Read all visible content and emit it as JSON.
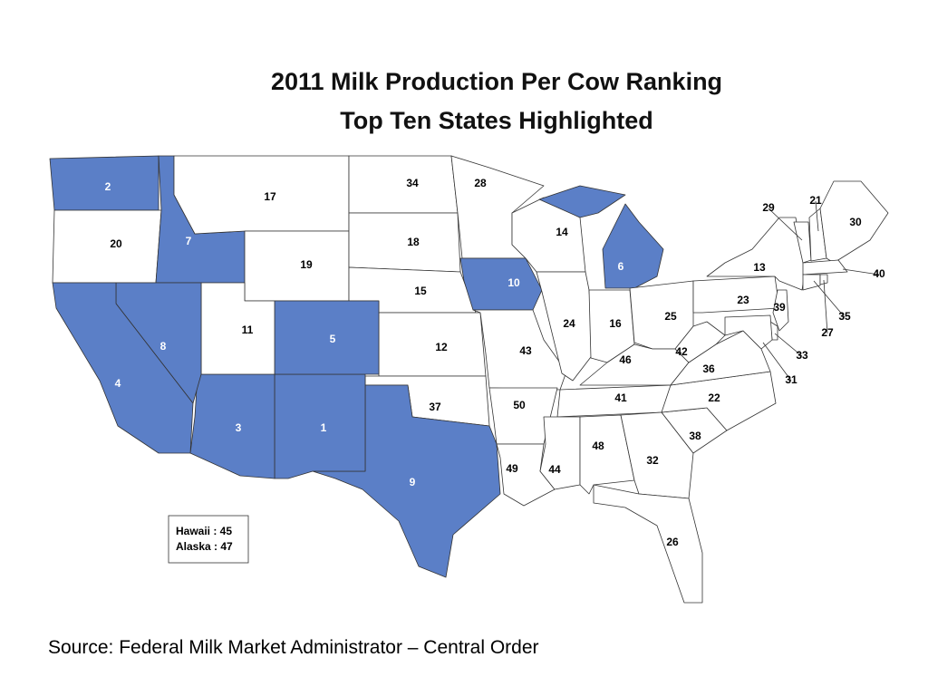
{
  "map": {
    "title": [
      "2011 Milk Production Per Cow Ranking",
      "Top Ten States Highlighted"
    ],
    "highlight_color": "#5b7fc7",
    "base_color": "#ffffff",
    "states": [
      {
        "rank": 2,
        "highlighted": true
      },
      {
        "rank": 20,
        "highlighted": false
      },
      {
        "rank": 7,
        "highlighted": true
      },
      {
        "rank": 17,
        "highlighted": false
      },
      {
        "rank": 19,
        "highlighted": false
      },
      {
        "rank": 34,
        "highlighted": false
      },
      {
        "rank": 18,
        "highlighted": false
      },
      {
        "rank": 15,
        "highlighted": false
      },
      {
        "rank": 12,
        "highlighted": false
      },
      {
        "rank": 37,
        "highlighted": false
      },
      {
        "rank": 9,
        "highlighted": true
      },
      {
        "rank": 1,
        "highlighted": true
      },
      {
        "rank": 3,
        "highlighted": true
      },
      {
        "rank": 5,
        "highlighted": true
      },
      {
        "rank": 11,
        "highlighted": false
      },
      {
        "rank": 8,
        "highlighted": true
      },
      {
        "rank": 4,
        "highlighted": true
      },
      {
        "rank": 28,
        "highlighted": false
      },
      {
        "rank": 10,
        "highlighted": true
      },
      {
        "rank": 43,
        "highlighted": false
      },
      {
        "rank": 50,
        "highlighted": false
      },
      {
        "rank": 49,
        "highlighted": false
      },
      {
        "rank": 14,
        "highlighted": false
      },
      {
        "rank": 24,
        "highlighted": false
      },
      {
        "rank": 6,
        "highlighted": true
      },
      {
        "rank": 16,
        "highlighted": false
      },
      {
        "rank": 25,
        "highlighted": false
      },
      {
        "rank": 46,
        "highlighted": false
      },
      {
        "rank": 41,
        "highlighted": false
      },
      {
        "rank": 44,
        "highlighted": false
      },
      {
        "rank": 48,
        "highlighted": false
      },
      {
        "rank": 32,
        "highlighted": false
      },
      {
        "rank": 26,
        "highlighted": false
      },
      {
        "rank": 38,
        "highlighted": false
      },
      {
        "rank": 22,
        "highlighted": false
      },
      {
        "rank": 36,
        "highlighted": false
      },
      {
        "rank": 42,
        "highlighted": false
      },
      {
        "rank": 23,
        "highlighted": false
      },
      {
        "rank": 13,
        "highlighted": false
      },
      {
        "rank": 29,
        "highlighted": false
      },
      {
        "rank": 21,
        "highlighted": false
      },
      {
        "rank": 30,
        "highlighted": false
      },
      {
        "rank": 40,
        "highlighted": false
      },
      {
        "rank": 35,
        "highlighted": false
      },
      {
        "rank": 27,
        "highlighted": false
      },
      {
        "rank": 39,
        "highlighted": false
      },
      {
        "rank": 33,
        "highlighted": false
      },
      {
        "rank": 31,
        "highlighted": false
      }
    ],
    "inset": [
      "Hawaii : 45",
      "Alaska : 47"
    ],
    "source": "Source: Federal Milk Market Administrator – Central Order"
  }
}
